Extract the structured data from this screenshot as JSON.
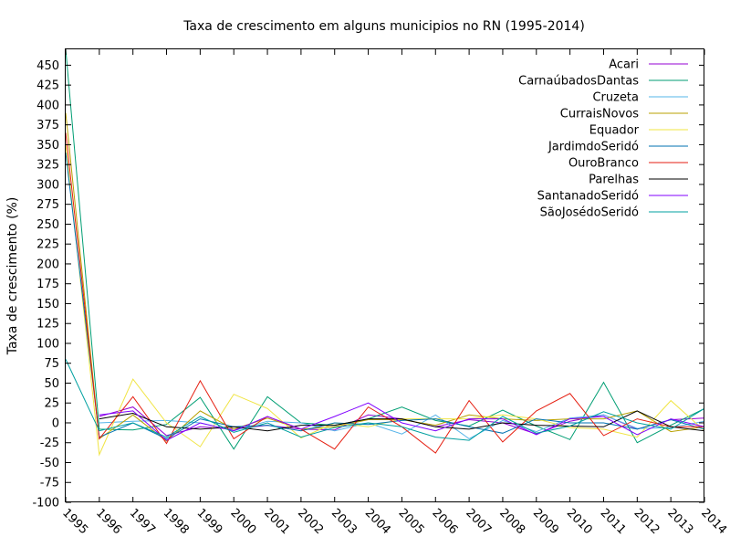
{
  "chart_data": {
    "type": "line",
    "title": "Taxa de crescimento em alguns municipios no RN (1995-2014)",
    "xlabel": "",
    "ylabel": "Taxa de crescimento (%)",
    "ylim": [
      -100,
      470
    ],
    "yticks": [
      -100,
      -75,
      -50,
      -25,
      0,
      25,
      50,
      75,
      100,
      125,
      150,
      175,
      200,
      225,
      250,
      275,
      300,
      325,
      350,
      375,
      400,
      425,
      450
    ],
    "categories": [
      "1995",
      "1996",
      "1997",
      "1998",
      "1999",
      "2000",
      "2001",
      "2002",
      "2003",
      "2004",
      "2005",
      "2006",
      "2007",
      "2008",
      "2009",
      "2010",
      "2011",
      "2012",
      "2013",
      "2014"
    ],
    "grid": false,
    "legend_position": "top-right",
    "series": [
      {
        "name": "Acari",
        "color": "#9400d3",
        "values": [
          null,
          8,
          20,
          -16,
          -5,
          -8,
          -3,
          -8,
          -9,
          10,
          5,
          -5,
          4,
          0,
          -14,
          2,
          10,
          -8,
          4,
          6
        ]
      },
      {
        "name": "CarnaúbadosDantas",
        "color": "#009e73",
        "values": [
          470,
          -8,
          -9,
          -2,
          32,
          -33,
          33,
          0,
          -3,
          5,
          20,
          3,
          -4,
          16,
          -4,
          -21,
          51,
          -25,
          -3,
          18
        ]
      },
      {
        "name": "Cruzeta",
        "color": "#56b4e9",
        "values": [
          null,
          0,
          2,
          3,
          0,
          -10,
          2,
          0,
          -10,
          0,
          -14,
          10,
          -20,
          3,
          -11,
          6,
          10,
          -7,
          -6,
          2
        ]
      },
      {
        "name": "CurraisNovos",
        "color": "#b8a000",
        "values": [
          390,
          -20,
          10,
          -23,
          15,
          -8,
          6,
          -8,
          -5,
          4,
          4,
          -3,
          10,
          5,
          3,
          5,
          5,
          15,
          -11,
          -5
        ]
      },
      {
        "name": "Equador",
        "color": "#f0e442",
        "values": [
          350,
          -40,
          55,
          0,
          -30,
          36,
          18,
          -19,
          0,
          -5,
          5,
          5,
          5,
          10,
          5,
          -6,
          -8,
          -18,
          28,
          -10
        ]
      },
      {
        "name": "JardimdoSeridó",
        "color": "#0072b2",
        "values": [
          340,
          -18,
          0,
          -20,
          5,
          -5,
          -3,
          -10,
          0,
          -2,
          3,
          5,
          -5,
          -13,
          5,
          0,
          0,
          -8,
          4,
          -8
        ]
      },
      {
        "name": "OuroBranco",
        "color": "#e51e10",
        "values": [
          365,
          -20,
          33,
          -26,
          53,
          -20,
          8,
          -8,
          -33,
          20,
          -5,
          -38,
          28,
          -24,
          15,
          37,
          -16,
          5,
          -5,
          -5
        ]
      },
      {
        "name": "Parelhas",
        "color": "#000000",
        "values": [
          null,
          5,
          12,
          -5,
          -8,
          -5,
          -10,
          -3,
          -3,
          5,
          5,
          -5,
          -8,
          0,
          -3,
          -4,
          -5,
          15,
          -5,
          -10
        ]
      },
      {
        "name": "SantanadoSeridó",
        "color": "#8000ff",
        "values": [
          null,
          10,
          15,
          -22,
          0,
          -10,
          8,
          -8,
          8,
          25,
          0,
          -10,
          5,
          5,
          -15,
          5,
          8,
          -15,
          5,
          -5
        ]
      },
      {
        "name": "SãoJosédoSeridó",
        "color": "#00a0a0",
        "values": [
          80,
          -10,
          0,
          -18,
          8,
          -12,
          0,
          -18,
          -6,
          0,
          -5,
          -18,
          -22,
          8,
          -13,
          -4,
          14,
          0,
          -8,
          18
        ]
      }
    ]
  }
}
